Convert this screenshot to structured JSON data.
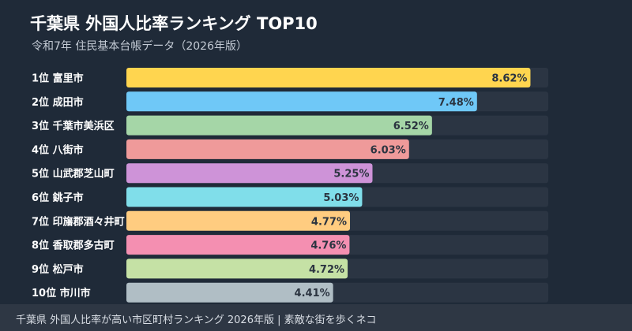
{
  "header": {
    "title": "千葉県 外国人比率ランキング TOP10",
    "subtitle": "令和7年 住民基本台帳データ（2026年版）"
  },
  "footer": {
    "text": "千葉県 外国人比率が高い市区町村ランキング 2026年版 | 素敵な街を歩くネコ"
  },
  "colors": {
    "background": "#1f2a38",
    "track": "#2b3543",
    "footer_bg": "#2e3744"
  },
  "chart_data": {
    "type": "bar",
    "orientation": "horizontal",
    "categories": [
      "1位 富里市",
      "2位 成田市",
      "3位 千葉市美浜区",
      "4位 八街市",
      "5位 山武郡芝山町",
      "6位 銚子市",
      "7位 印旛郡酒々井町",
      "8位 香取郡多古町",
      "9位 松戸市",
      "10位 市川市"
    ],
    "values": [
      8.62,
      7.48,
      6.52,
      6.03,
      5.25,
      5.03,
      4.77,
      4.76,
      4.72,
      4.41
    ],
    "value_labels": [
      "8.62%",
      "7.48%",
      "6.52%",
      "6.03%",
      "5.25%",
      "5.03%",
      "4.77%",
      "4.76%",
      "4.72%",
      "4.41%"
    ],
    "bar_colors": [
      "#ffd54f",
      "#6fc8f7",
      "#a5d6a7",
      "#ef9a9a",
      "#ce93d8",
      "#80deea",
      "#ffcc80",
      "#f48fb1",
      "#c5e1a5",
      "#b0bec5"
    ],
    "xlim": [
      0,
      9
    ],
    "grid": false,
    "legend": "none"
  }
}
